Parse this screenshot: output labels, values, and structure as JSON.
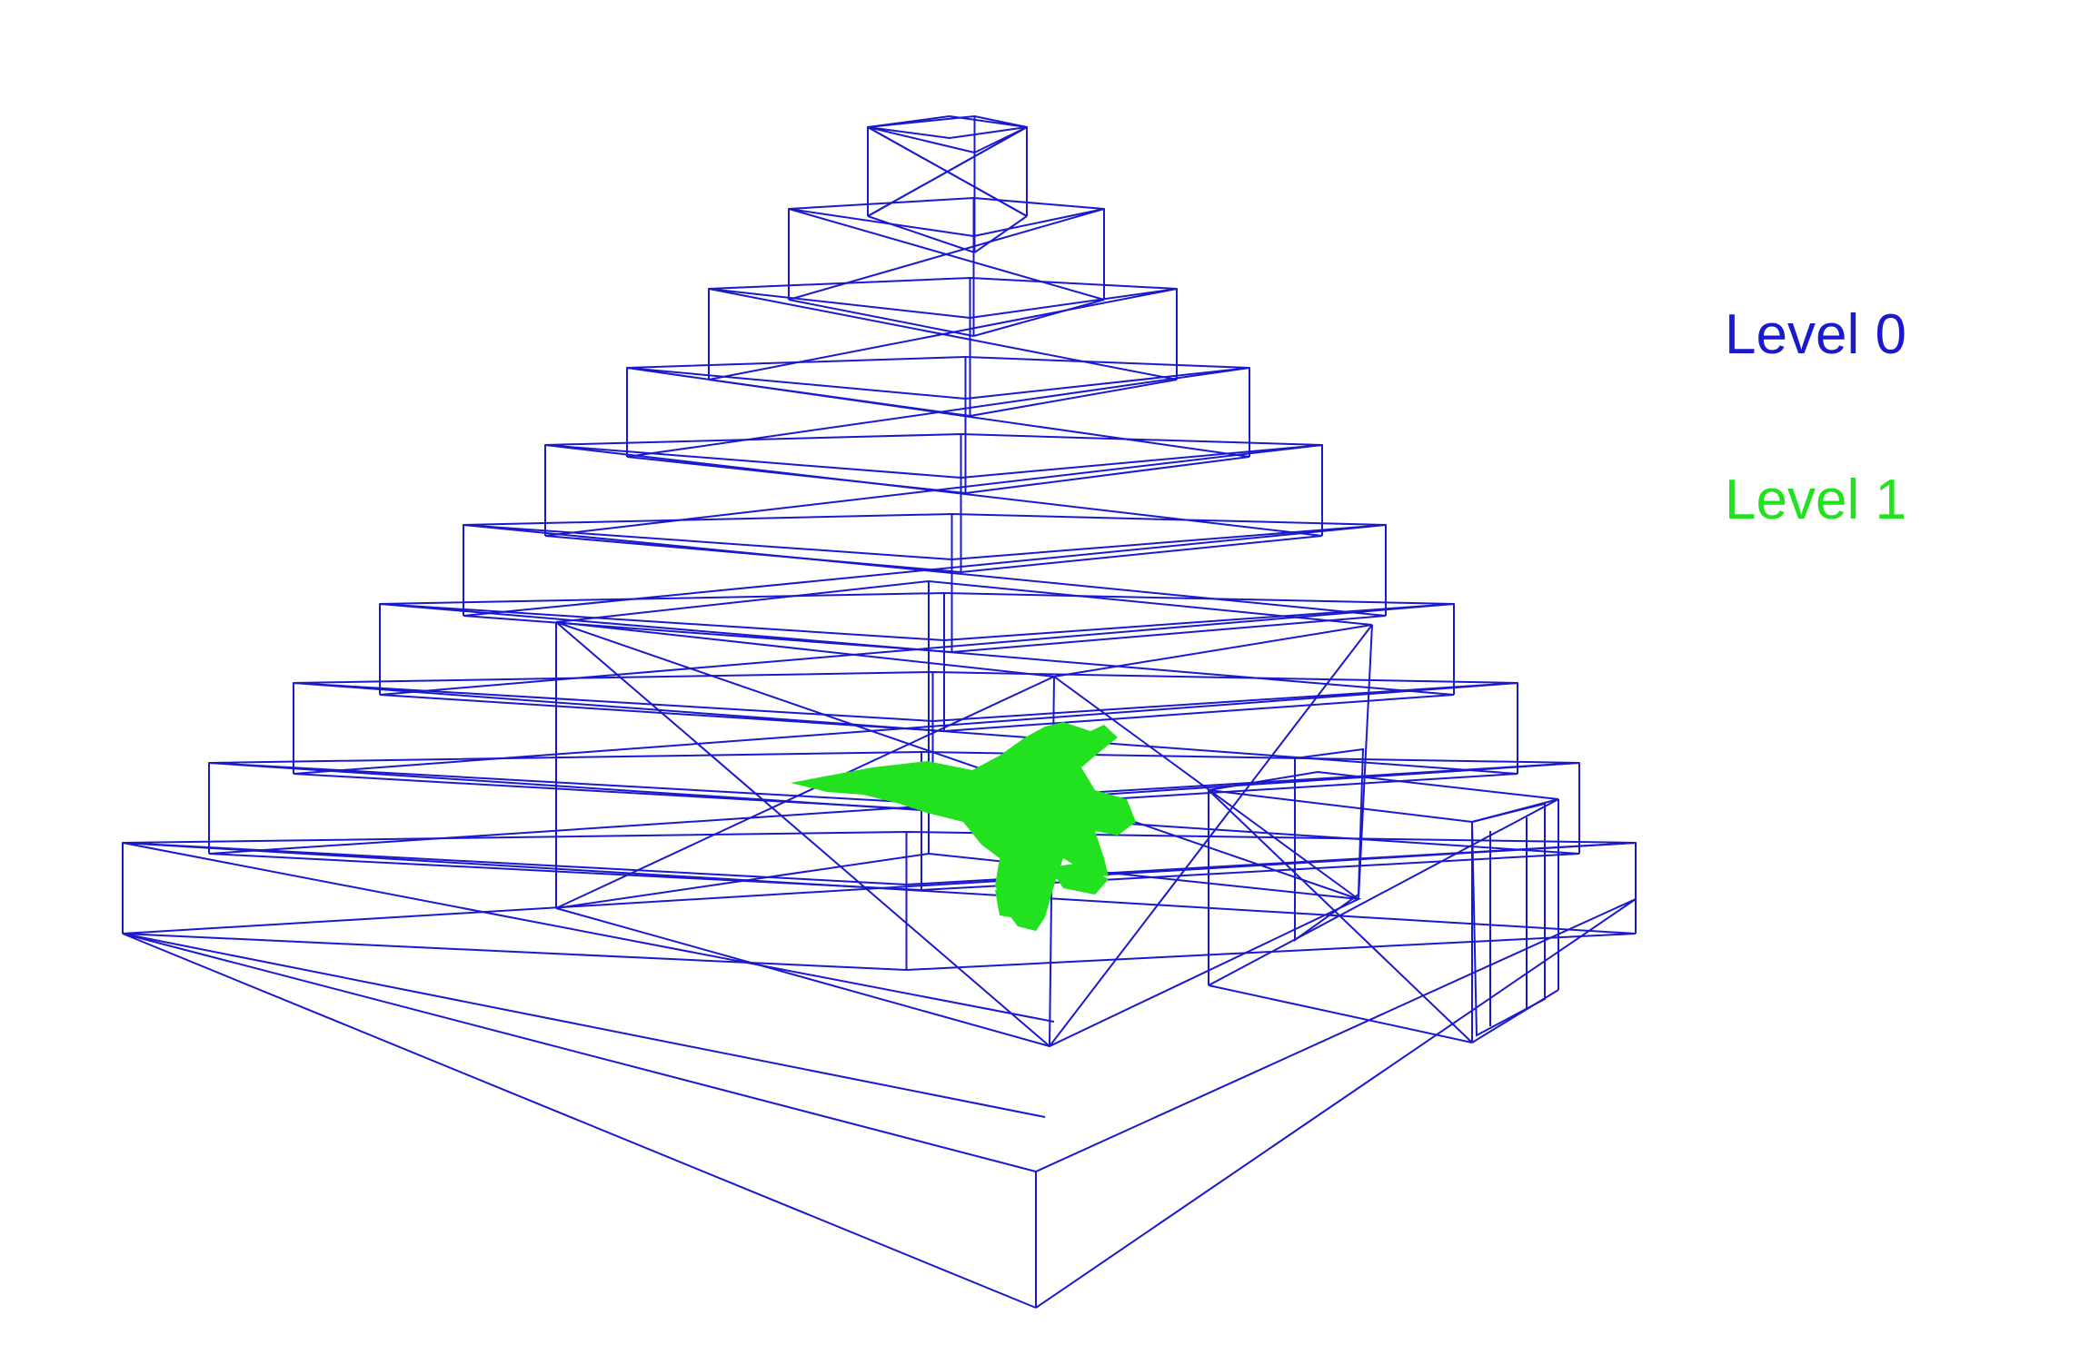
{
  "legend": {
    "level0": {
      "label": "Level 0",
      "color": "#1a1acc"
    },
    "level1": {
      "label": "Level 1",
      "color": "#22e11e"
    }
  },
  "scene": {
    "description_icon": "wireframe-stepped-pyramid-with-green-creature",
    "wire_color": "#1a1acc",
    "creature_color": "#22e11e"
  }
}
